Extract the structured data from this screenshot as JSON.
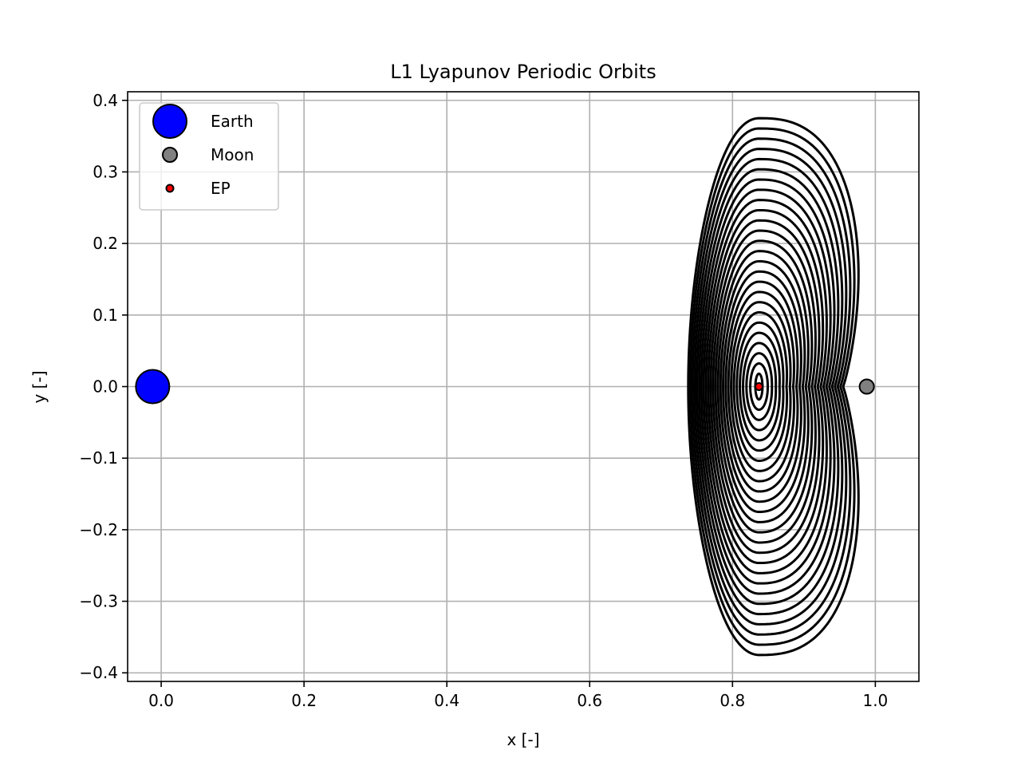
{
  "chart_data": {
    "type": "line",
    "title": "L1 Lyapunov Periodic Orbits",
    "xlabel": "x [-]",
    "ylabel": "y [-]",
    "xlim": [
      -0.047,
      1.061
    ],
    "ylim": [
      -0.412,
      0.412
    ],
    "xticks": [
      0.0,
      0.2,
      0.4,
      0.6,
      0.8,
      1.0
    ],
    "xtick_labels": [
      "0.0",
      "0.2",
      "0.4",
      "0.6",
      "0.8",
      "1.0"
    ],
    "yticks": [
      0.4,
      0.3,
      0.2,
      0.1,
      0.0,
      -0.1,
      -0.2,
      -0.3,
      -0.4
    ],
    "ytick_labels": [
      "0.4",
      "0.3",
      "0.2",
      "0.1",
      "0.0",
      "−0.1",
      "−0.2",
      "−0.3",
      "−0.4"
    ],
    "grid": true,
    "legend_position": "upper-left",
    "bodies": [
      {
        "label": "Earth",
        "x": -0.012,
        "y": 0.0,
        "color": "#0000ff",
        "marker": "large-circle"
      },
      {
        "label": "Moon",
        "x": 0.988,
        "y": 0.0,
        "color": "#808080",
        "marker": "medium-circle"
      },
      {
        "label": "EP",
        "x": 0.837,
        "y": 0.0,
        "color": "#ff0000",
        "marker": "small-circle"
      }
    ],
    "orbit_family": {
      "count": 26,
      "color": "#000000",
      "center_x": 0.837,
      "min_half_height": 0.018,
      "max_half_height": 0.375,
      "max_left_x": 0.738,
      "max_right_x": 1.023,
      "neck_x": 0.955
    }
  }
}
